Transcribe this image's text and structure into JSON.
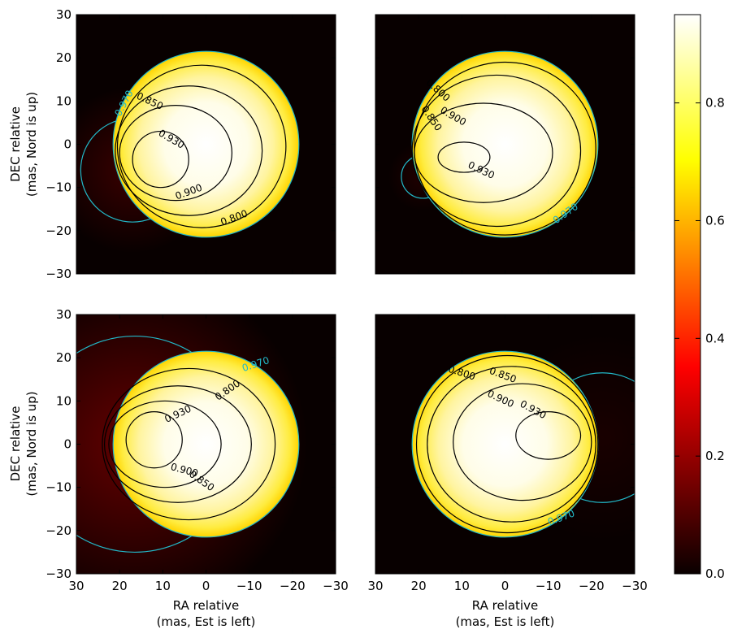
{
  "chart_data": {
    "type": "heatmap",
    "colormap": "hot",
    "colorbar": {
      "range": [
        0.0,
        0.95
      ],
      "ticks": [
        "0.0",
        "0.2",
        "0.4",
        "0.6",
        "0.8"
      ],
      "tick_values": [
        0.0,
        0.2,
        0.4,
        0.6,
        0.8
      ]
    },
    "x_ticks": [
      "30",
      "20",
      "10",
      "0",
      "−10",
      "−20",
      "−30"
    ],
    "x_tick_values": [
      30,
      20,
      10,
      0,
      -10,
      -20,
      -30
    ],
    "y_ticks": [
      "30",
      "20",
      "10",
      "0",
      "−10",
      "−20",
      "−30"
    ],
    "y_tick_values": [
      30,
      20,
      10,
      0,
      -10,
      -20,
      -30
    ],
    "xlabel_line1": "RA relative",
    "xlabel_line2": "(mas, Est is left)",
    "ylabel_line1": "DEC relative",
    "ylabel_line2": "(mas, Nord is up)",
    "xlim": [
      30,
      -30
    ],
    "ylim": [
      -30,
      30
    ],
    "panels": [
      {
        "disk": {
          "cx": 0,
          "cy": 0,
          "r": 21.5
        },
        "companion": {
          "cx": 17,
          "cy": -6,
          "r": 12,
          "glow": 0.3
        },
        "contours": [
          {
            "level": "0.970",
            "kind": "outer",
            "label_at": [
              19,
              9.5
            ],
            "label_angle": -62
          },
          {
            "level": "0.800",
            "cx": 1,
            "cy": -0.5,
            "rx": 19.5,
            "ry": 18.8,
            "label_at": [
              -6.5,
              -17
            ],
            "label_angle": -20
          },
          {
            "level": "0.850",
            "cx": 4,
            "cy": -1.5,
            "rx": 17,
            "ry": 15,
            "label_at": [
              13,
              10
            ],
            "label_angle": 25
          },
          {
            "level": "0.900",
            "cx": 7,
            "cy": -2,
            "rx": 13,
            "ry": 11,
            "label_at": [
              4,
              -11
            ],
            "label_angle": -20
          },
          {
            "level": "0.930",
            "cx": 10.5,
            "cy": -3.5,
            "rx": 6.5,
            "ry": 6.5,
            "label_at": [
              8,
              1.2
            ],
            "label_angle": 30
          }
        ]
      },
      {
        "disk": {
          "cx": 0,
          "cy": 0,
          "r": 21.5
        },
        "companion": {
          "cx": 19,
          "cy": -7.5,
          "r": 5,
          "glow": 0.15
        },
        "contours": [
          {
            "level": "0.970",
            "kind": "outer",
            "label_at": [
              -14,
              -16
            ],
            "label_angle": -35
          },
          {
            "level": "0.800",
            "cx": 0,
            "cy": -1,
            "rx": 21,
            "ry": 20,
            "label_at": [
              15.5,
              12.5
            ],
            "label_angle": 42
          },
          {
            "level": "0.850",
            "cx": 2,
            "cy": -1.5,
            "rx": 19.5,
            "ry": 17.5,
            "label_at": [
              17,
              6
            ],
            "label_angle": 55
          },
          {
            "level": "0.900",
            "cx": 5,
            "cy": -2,
            "rx": 16,
            "ry": 11.5,
            "label_at": [
              12,
              6.5
            ],
            "label_angle": 30
          },
          {
            "level": "0.930",
            "cx": 9.5,
            "cy": -3,
            "rx": 6,
            "ry": 3.5,
            "label_at": [
              5.5,
              -6
            ],
            "label_angle": 25
          }
        ]
      },
      {
        "disk": {
          "cx": 0,
          "cy": 0,
          "r": 21.5
        },
        "companion": {
          "cx": 16.5,
          "cy": 0,
          "r": 25,
          "glow": 0.55
        },
        "contours": [
          {
            "level": "0.970",
            "kind": "outer",
            "label_at": [
              -11.5,
              18.5
            ],
            "label_angle": -18
          },
          {
            "level": "0.800",
            "cx": 4,
            "cy": 0,
            "rx": 20,
            "ry": 17.5,
            "label_at": [
              -5,
              12.5
            ],
            "label_angle": -35
          },
          {
            "level": "0.850",
            "cx": 6.5,
            "cy": 0,
            "rx": 17,
            "ry": 13.5,
            "label_at": [
              1,
              -8.5
            ],
            "label_angle": 35
          },
          {
            "level": "0.900",
            "cx": 9.5,
            "cy": 0,
            "rx": 13,
            "ry": 10,
            "label_at": [
              5,
              -6
            ],
            "label_angle": 15
          },
          {
            "level": "0.930",
            "cx": 12,
            "cy": 1,
            "rx": 6.5,
            "ry": 6.5,
            "label_at": [
              6.5,
              7
            ],
            "label_angle": -25
          }
        ]
      },
      {
        "disk": {
          "cx": 0,
          "cy": 0,
          "r": 21.5
        },
        "companion": {
          "cx": -22.5,
          "cy": 1.5,
          "r": 15,
          "glow": 0.1
        },
        "contours": [
          {
            "level": "0.970",
            "kind": "outer",
            "label_at": [
              -13,
              -17
            ],
            "label_angle": -20
          },
          {
            "level": "0.800",
            "cx": -0.5,
            "cy": 0,
            "rx": 21,
            "ry": 20.5,
            "label_at": [
              10,
              16.5
            ],
            "label_angle": 18
          },
          {
            "level": "0.850",
            "cx": -1.5,
            "cy": 0,
            "rx": 19.5,
            "ry": 18,
            "label_at": [
              0.5,
              16
            ],
            "label_angle": 20
          },
          {
            "level": "0.900",
            "cx": -4,
            "cy": 0.5,
            "rx": 16,
            "ry": 13.5,
            "label_at": [
              1,
              10.5
            ],
            "label_angle": 25
          },
          {
            "level": "0.930",
            "cx": -10,
            "cy": 2,
            "rx": 7.5,
            "ry": 5.5,
            "label_at": [
              -6.5,
              8
            ],
            "label_angle": 28
          }
        ]
      }
    ]
  }
}
